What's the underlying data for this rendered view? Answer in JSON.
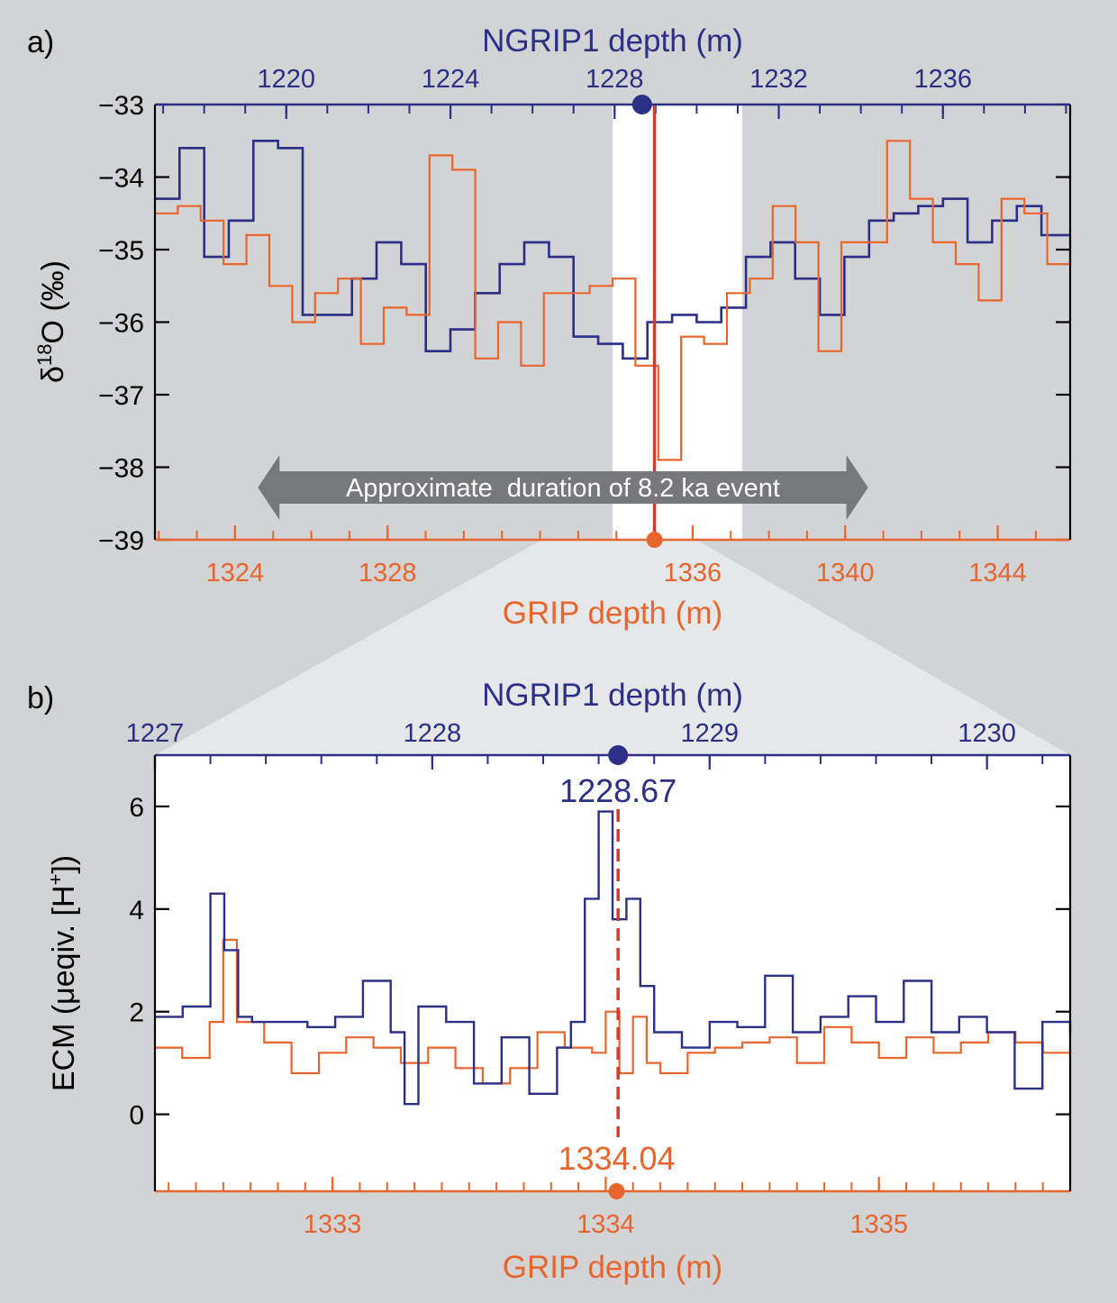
{
  "colors": {
    "background": "#d2d3d5",
    "ngrip": "#2b2f86",
    "grip": "#e8652e",
    "marker_line": "#d63a2a",
    "arrow": "#77787b",
    "highlight": "#ffffff"
  },
  "chart_data": [
    {
      "panel_label": "a)",
      "type": "line",
      "step": true,
      "top_axis": {
        "label": "NGRIP1 depth (m)",
        "ticks": [
          1220,
          1224,
          1228,
          1232,
          1236
        ],
        "range": [
          1216.8,
          1239.1
        ]
      },
      "bottom_axis": {
        "label": "GRIP depth (m)",
        "ticks": [
          1324,
          1328,
          1336,
          1340,
          1344
        ],
        "range": [
          1321.9,
          1345.9
        ]
      },
      "y_axis": {
        "label": "δ18O (‰)",
        "ticks": [
          -33,
          -34,
          -35,
          -36,
          -37,
          -38,
          -39
        ],
        "range": [
          -39,
          -33
        ]
      },
      "highlight_range_grip": [
        1333.9,
        1337.3
      ],
      "marker_grip": 1335.0,
      "marker_ngrip": 1228.67,
      "annotation": "Approximate  duration of 8.2 ka event",
      "arrow_span_grip": [
        1324.6,
        1340.6
      ],
      "series": [
        {
          "name": "NGRIP1",
          "axis": "top",
          "x": [
            1216.8,
            1217.4,
            1218.0,
            1218.6,
            1219.2,
            1219.8,
            1220.4,
            1221.0,
            1221.6,
            1222.2,
            1222.8,
            1223.4,
            1224.0,
            1224.6,
            1225.2,
            1225.8,
            1226.4,
            1227.0,
            1227.6,
            1228.2,
            1228.8,
            1229.4,
            1230.0,
            1230.6,
            1231.2,
            1231.8,
            1232.4,
            1233.0,
            1233.6,
            1234.2,
            1234.8,
            1235.4,
            1236.0,
            1236.6,
            1237.2,
            1237.8,
            1238.4,
            1239.1
          ],
          "y": [
            -34.3,
            -33.6,
            -35.1,
            -34.6,
            -33.5,
            -33.6,
            -35.9,
            -35.9,
            -35.4,
            -34.9,
            -35.2,
            -36.4,
            -36.1,
            -35.6,
            -35.2,
            -34.9,
            -35.1,
            -36.2,
            -36.3,
            -36.5,
            -36.0,
            -35.9,
            -36.0,
            -35.8,
            -35.1,
            -34.9,
            -35.4,
            -35.9,
            -35.1,
            -34.6,
            -34.5,
            -34.4,
            -34.3,
            -34.9,
            -34.6,
            -34.4,
            -34.8,
            -34.8
          ]
        },
        {
          "name": "GRIP",
          "axis": "bottom",
          "x": [
            1321.9,
            1322.5,
            1323.1,
            1323.7,
            1324.3,
            1324.9,
            1325.5,
            1326.1,
            1326.7,
            1327.3,
            1327.9,
            1328.5,
            1329.1,
            1329.7,
            1330.3,
            1330.9,
            1331.5,
            1332.1,
            1332.7,
            1333.3,
            1333.9,
            1334.5,
            1335.1,
            1335.7,
            1336.3,
            1336.9,
            1337.5,
            1338.1,
            1338.7,
            1339.3,
            1339.9,
            1340.5,
            1341.1,
            1341.7,
            1342.3,
            1342.9,
            1343.5,
            1344.1,
            1344.7,
            1345.3,
            1345.9
          ],
          "y": [
            -34.5,
            -34.4,
            -34.6,
            -35.2,
            -34.8,
            -35.5,
            -36.0,
            -35.6,
            -35.4,
            -36.3,
            -35.8,
            -35.9,
            -33.7,
            -33.9,
            -36.5,
            -36.0,
            -36.6,
            -35.6,
            -35.6,
            -35.5,
            -35.4,
            -36.6,
            -37.9,
            -36.2,
            -36.3,
            -35.6,
            -35.4,
            -34.4,
            -34.9,
            -36.4,
            -34.9,
            -34.9,
            -33.5,
            -34.3,
            -34.9,
            -35.2,
            -35.7,
            -34.3,
            -34.5,
            -35.2,
            -34.8
          ]
        }
      ]
    },
    {
      "panel_label": "b)",
      "type": "line",
      "step": true,
      "top_axis": {
        "label": "NGRIP1 depth (m)",
        "ticks": [
          1227,
          1228,
          1229,
          1230
        ],
        "range": [
          1227.0,
          1230.3
        ]
      },
      "bottom_axis": {
        "label": "GRIP depth (m)",
        "ticks": [
          1333,
          1334,
          1335
        ],
        "range": [
          1332.35,
          1335.7
        ]
      },
      "y_axis": {
        "label": "ECM (μeqiv. [H+])",
        "ticks": [
          6,
          4,
          2,
          0
        ],
        "range": [
          -1.5,
          7
        ]
      },
      "marker_ngrip_label": "1228.67",
      "marker_grip_label": "1334.04",
      "marker_ngrip": 1228.67,
      "marker_grip": 1334.04,
      "series": [
        {
          "name": "NGRIP1",
          "axis": "top",
          "x": [
            1227.0,
            1227.1,
            1227.2,
            1227.25,
            1227.3,
            1227.35,
            1227.45,
            1227.55,
            1227.65,
            1227.75,
            1227.85,
            1227.9,
            1227.95,
            1228.05,
            1228.15,
            1228.25,
            1228.35,
            1228.45,
            1228.5,
            1228.55,
            1228.6,
            1228.65,
            1228.7,
            1228.75,
            1228.8,
            1228.9,
            1229.0,
            1229.1,
            1229.2,
            1229.3,
            1229.4,
            1229.5,
            1229.6,
            1229.7,
            1229.8,
            1229.9,
            1230.0,
            1230.1,
            1230.2,
            1230.3
          ],
          "y": [
            1.9,
            2.1,
            4.3,
            3.2,
            1.9,
            1.8,
            1.8,
            1.7,
            1.9,
            2.6,
            1.6,
            0.2,
            2.1,
            1.8,
            0.6,
            1.5,
            0.4,
            1.3,
            1.8,
            4.2,
            5.9,
            3.8,
            4.2,
            2.5,
            1.6,
            1.3,
            1.8,
            1.7,
            2.7,
            1.6,
            1.9,
            2.3,
            1.8,
            2.6,
            1.6,
            1.9,
            1.6,
            0.5,
            1.8,
            1.6
          ]
        },
        {
          "name": "GRIP",
          "axis": "bottom",
          "x": [
            1332.35,
            1332.45,
            1332.55,
            1332.6,
            1332.65,
            1332.75,
            1332.85,
            1332.95,
            1333.05,
            1333.15,
            1333.25,
            1333.35,
            1333.45,
            1333.55,
            1333.65,
            1333.75,
            1333.85,
            1333.95,
            1334.0,
            1334.05,
            1334.1,
            1334.15,
            1334.2,
            1334.3,
            1334.4,
            1334.5,
            1334.6,
            1334.7,
            1334.8,
            1334.9,
            1335.0,
            1335.1,
            1335.2,
            1335.3,
            1335.4,
            1335.5,
            1335.6,
            1335.7
          ],
          "y": [
            1.3,
            1.1,
            1.8,
            3.4,
            1.8,
            1.4,
            0.8,
            1.2,
            1.5,
            1.3,
            1.0,
            1.3,
            0.9,
            0.6,
            0.9,
            1.6,
            1.3,
            1.2,
            2.0,
            0.8,
            1.9,
            1.0,
            0.8,
            1.2,
            1.3,
            1.4,
            1.5,
            1.0,
            1.7,
            1.4,
            1.1,
            1.5,
            1.2,
            1.4,
            1.6,
            1.4,
            1.2,
            1.6
          ]
        }
      ]
    }
  ]
}
